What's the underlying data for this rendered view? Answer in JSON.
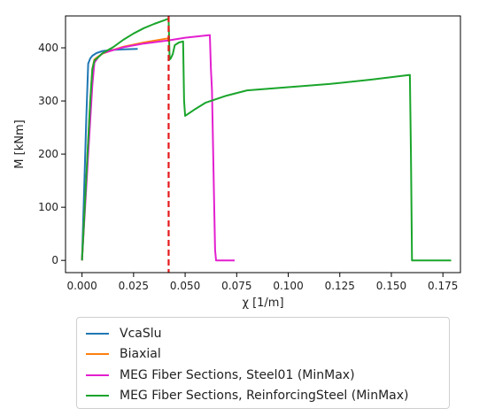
{
  "chart_data": {
    "type": "line",
    "xlabel": "χ [1/m]",
    "ylabel": "M [kNm]",
    "xlim": [
      -0.008,
      0.1835
    ],
    "ylim": [
      -23,
      460
    ],
    "xticks": [
      0.0,
      0.025,
      0.05,
      0.075,
      0.1,
      0.125,
      0.15,
      0.175
    ],
    "xtick_labels": [
      "0.000",
      "0.025",
      "0.050",
      "0.075",
      "0.100",
      "0.125",
      "0.150",
      "0.175"
    ],
    "yticks": [
      0,
      100,
      200,
      300,
      400
    ],
    "ytick_labels": [
      "0",
      "100",
      "200",
      "300",
      "400"
    ],
    "grid": false,
    "legend_position": "below",
    "vline": {
      "x": 0.042,
      "color": "#e41a1c",
      "style": "dashed"
    },
    "series": [
      {
        "name": "VcaSlu",
        "color": "#1f77b4",
        "x": [
          0,
          0.001,
          0.002,
          0.003,
          0.004,
          0.005,
          0.007,
          0.01,
          0.015,
          0.02,
          0.027
        ],
        "y": [
          0,
          130,
          260,
          370,
          380,
          385,
          390,
          394,
          396,
          397,
          398
        ]
      },
      {
        "name": "Biaxial",
        "color": "#ff7f0e",
        "x": [
          0,
          0.002,
          0.004,
          0.005,
          0.006,
          0.008,
          0.01,
          0.015,
          0.02,
          0.03,
          0.042
        ],
        "y": [
          0,
          150,
          300,
          360,
          378,
          384,
          389,
          396,
          402,
          410,
          418
        ]
      },
      {
        "name": "MEG Fiber Sections, Steel01 (MinMax)",
        "color": "#e31fcf",
        "x": [
          0,
          0.003,
          0.005,
          0.006,
          0.008,
          0.01,
          0.02,
          0.03,
          0.042,
          0.05,
          0.062,
          0.0625,
          0.063,
          0.064,
          0.0645,
          0.065,
          0.074
        ],
        "y": [
          0,
          200,
          330,
          372,
          383,
          390,
          401,
          408,
          414,
          419,
          424,
          360,
          320,
          120,
          20,
          0,
          0
        ]
      },
      {
        "name": "MEG Fiber Sections, ReinforcingSteel (MinMax)",
        "color": "#1aa52b",
        "x": [
          0,
          0.002,
          0.004,
          0.005,
          0.006,
          0.008,
          0.01,
          0.015,
          0.02,
          0.025,
          0.03,
          0.035,
          0.04,
          0.042,
          0.0425,
          0.043,
          0.044,
          0.045,
          0.047,
          0.049,
          0.0495,
          0.05,
          0.055,
          0.06,
          0.07,
          0.08,
          0.1,
          0.12,
          0.14,
          0.159,
          0.1595,
          0.16,
          0.179
        ],
        "y": [
          0,
          150,
          300,
          360,
          376,
          383,
          390,
          401,
          415,
          427,
          437,
          445,
          452,
          455,
          378,
          380,
          388,
          405,
          410,
          412,
          300,
          272,
          285,
          297,
          310,
          320,
          326,
          332,
          340,
          349,
          200,
          0,
          0
        ]
      }
    ]
  }
}
